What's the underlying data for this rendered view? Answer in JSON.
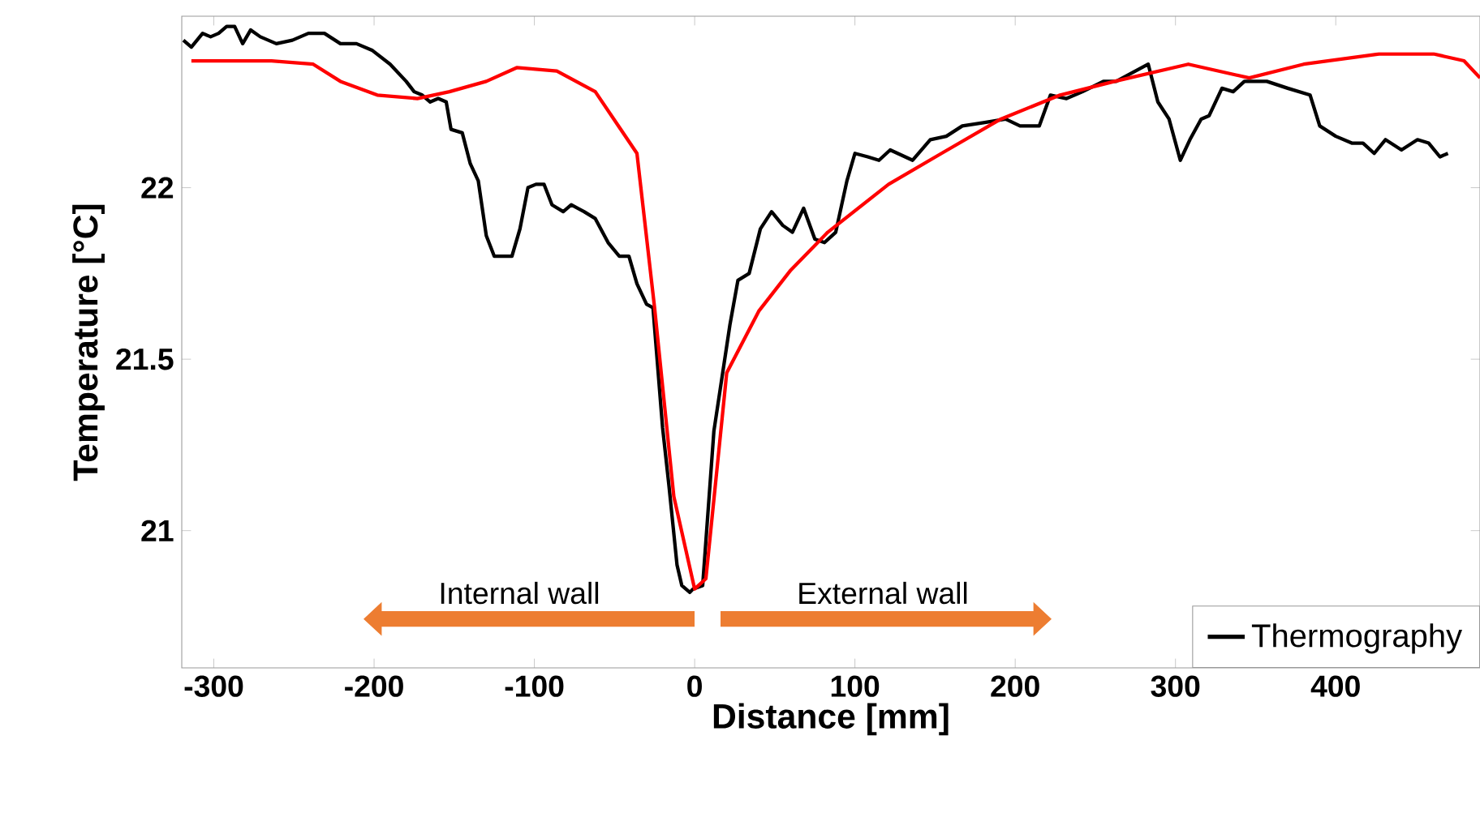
{
  "chart_data": {
    "type": "line",
    "xlabel": "Distance [mm]",
    "ylabel": "Temperature [°C]",
    "xlim": [
      -320,
      490
    ],
    "ylim": [
      20.6,
      22.5
    ],
    "xticks": [
      -300,
      -200,
      -100,
      0,
      100,
      200,
      300,
      400
    ],
    "yticks": [
      21,
      21.5,
      22
    ],
    "legend": "bottom right",
    "marker": "none",
    "line_style": "solid",
    "annotations": [
      "Internal wall",
      "External wall"
    ],
    "series": [
      {
        "name": "Thermography",
        "color": "#000000",
        "x": [
          -319,
          -314,
          -307,
          -302,
          -297,
          -292,
          -287,
          -282,
          -277,
          -271,
          -261,
          -251,
          -241,
          -231,
          -221,
          -211,
          -201,
          -190,
          -180,
          -175,
          -170,
          -165,
          -160,
          -155,
          -152,
          -145,
          -140,
          -135,
          -130,
          -125,
          -114,
          -109,
          -104,
          -99,
          -94,
          -89,
          -82,
          -77,
          -69,
          -62,
          -54,
          -47,
          -41,
          -36,
          -30,
          -26,
          -20,
          -16,
          -11,
          -8,
          -3,
          -1,
          5,
          12,
          22,
          27,
          34,
          41,
          48,
          55,
          61,
          68,
          75,
          81,
          88,
          95,
          100,
          108,
          115,
          122,
          136,
          147,
          157,
          167,
          181,
          194,
          203,
          215,
          222,
          232,
          242,
          255,
          263,
          283,
          289,
          296,
          303,
          309,
          316,
          321,
          329,
          336,
          343,
          357,
          370,
          384,
          390,
          400,
          410,
          417,
          424,
          431,
          441,
          451,
          458,
          465,
          470
        ],
        "values": [
          22.43,
          22.41,
          22.45,
          22.44,
          22.45,
          22.47,
          22.47,
          22.42,
          22.46,
          22.44,
          22.42,
          22.43,
          22.45,
          22.45,
          22.42,
          22.42,
          22.4,
          22.36,
          22.31,
          22.28,
          22.27,
          22.25,
          22.26,
          22.25,
          22.17,
          22.16,
          22.07,
          22.02,
          21.86,
          21.8,
          21.8,
          21.88,
          22.0,
          22.01,
          22.01,
          21.95,
          21.93,
          21.95,
          21.93,
          21.91,
          21.84,
          21.8,
          21.8,
          21.72,
          21.66,
          21.65,
          21.3,
          21.13,
          20.9,
          20.84,
          20.82,
          20.83,
          20.84,
          21.29,
          21.6,
          21.73,
          21.75,
          21.88,
          21.93,
          21.89,
          21.87,
          21.94,
          21.85,
          21.84,
          21.87,
          22.02,
          22.1,
          22.09,
          22.08,
          22.11,
          22.08,
          22.14,
          22.15,
          22.18,
          22.19,
          22.2,
          22.18,
          22.18,
          22.27,
          22.26,
          22.28,
          22.31,
          22.31,
          22.36,
          22.25,
          22.2,
          22.08,
          22.14,
          22.2,
          22.21,
          22.29,
          22.28,
          22.31,
          22.31,
          22.29,
          22.27,
          22.18,
          22.15,
          22.13,
          22.13,
          22.1,
          22.14,
          22.11,
          22.14,
          22.13,
          22.09,
          22.1
        ]
      },
      {
        "color": "#ff0000",
        "x": [
          -314,
          -264,
          -238,
          -221,
          -198,
          -173,
          -153,
          -130,
          -111,
          -86,
          -62,
          -36,
          -25,
          -13,
          0,
          7,
          20,
          40,
          60,
          83,
          121,
          154,
          191,
          228,
          262,
          308,
          346,
          380,
          427,
          461,
          480,
          490
        ],
        "values": [
          22.37,
          22.37,
          22.36,
          22.31,
          22.27,
          22.26,
          22.28,
          22.31,
          22.35,
          22.34,
          22.28,
          22.1,
          21.65,
          21.1,
          20.83,
          20.86,
          21.46,
          21.64,
          21.76,
          21.87,
          22.01,
          22.1,
          22.2,
          22.27,
          22.31,
          22.36,
          22.32,
          22.36,
          22.39,
          22.39,
          22.37,
          22.32
        ]
      }
    ]
  }
}
